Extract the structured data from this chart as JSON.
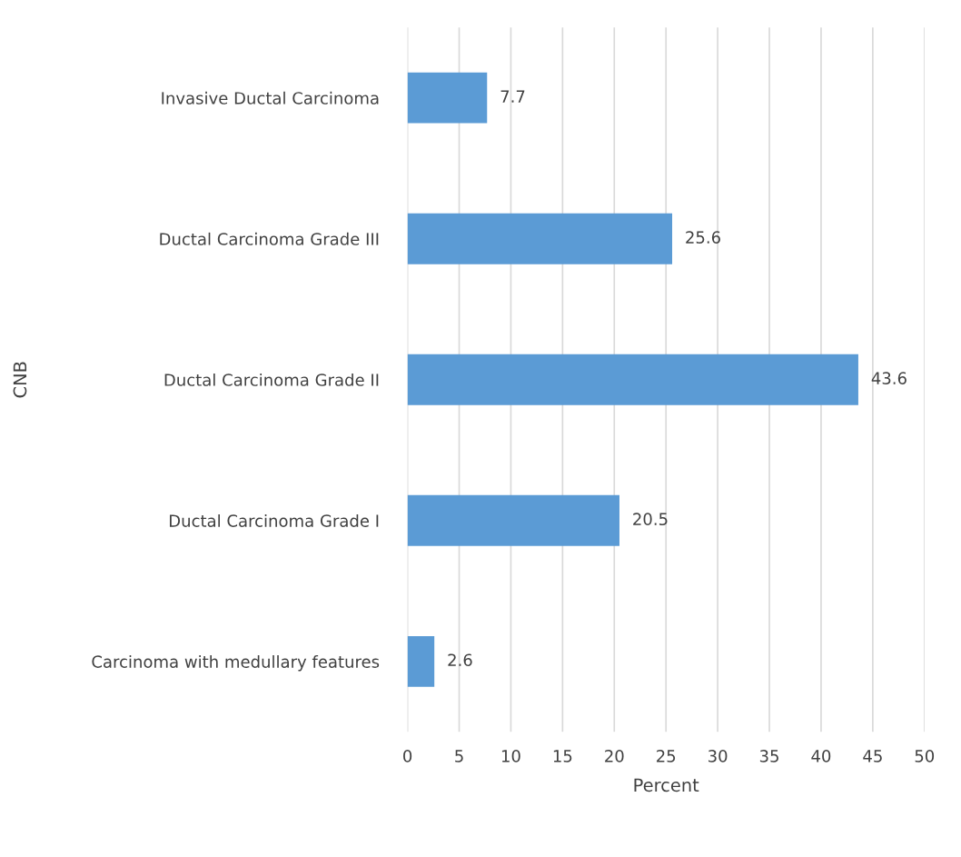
{
  "chart_data": {
    "type": "bar",
    "orientation": "horizontal",
    "xlabel": "Percent",
    "ylabel": "CNB",
    "categories": [
      "Invasive Ductal Carcinoma",
      "Ductal Carcinoma Grade III",
      "Ductal Carcinoma Grade II",
      "Ductal Carcinoma Grade I",
      "Carcinoma with medullary features"
    ],
    "values": [
      7.7,
      25.6,
      43.6,
      20.5,
      2.6
    ],
    "color": "#5b9bd5",
    "xlim": [
      0,
      50
    ],
    "xticks": [
      0,
      5,
      10,
      15,
      20,
      25,
      30,
      35,
      40,
      45,
      50
    ],
    "grid": "x",
    "data_labels": true
  }
}
